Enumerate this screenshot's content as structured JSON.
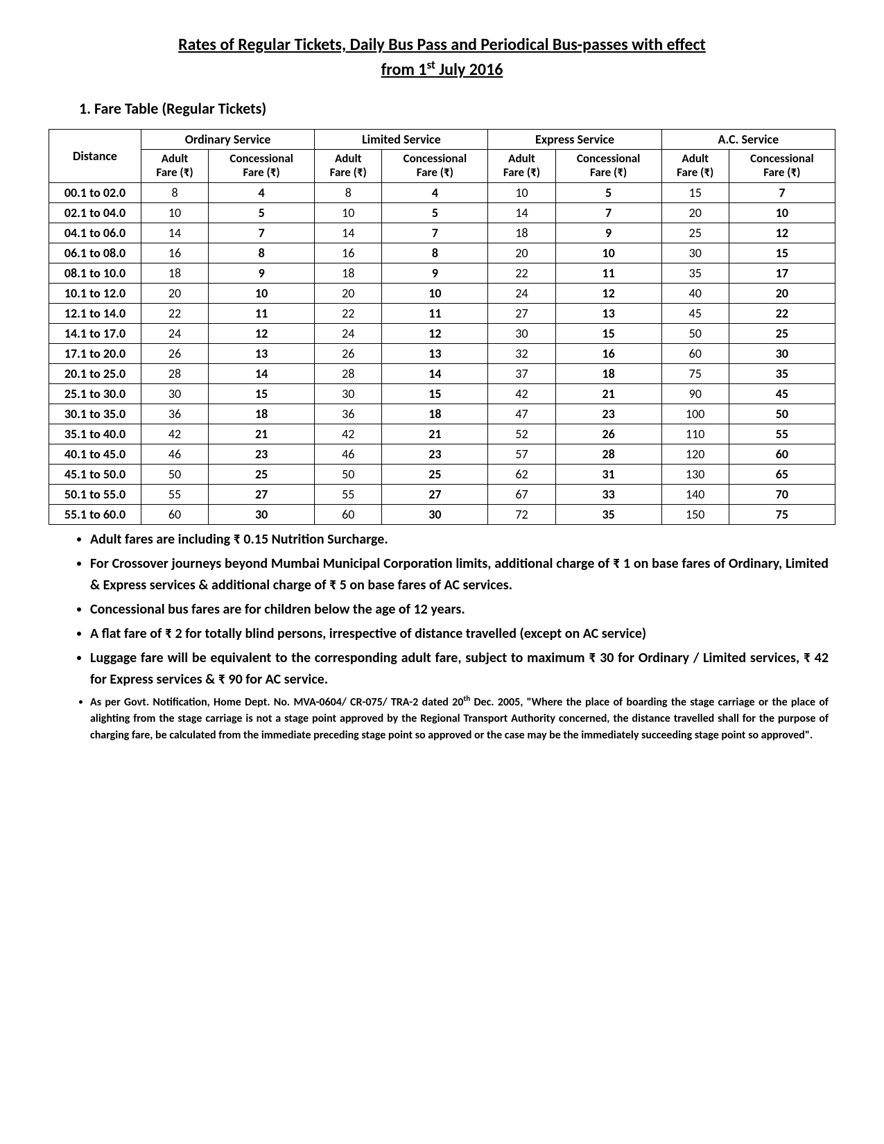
{
  "title_line1": "Rates of Regular Tickets, Daily Bus Pass and Periodical Bus-passes with effect",
  "title_line2_prefix": "from 1",
  "title_line2_sup": "st",
  "title_line2_suffix": " July 2016",
  "section_heading": "1.  Fare Table (Regular Tickets)",
  "table": {
    "header_distance": "Distance",
    "services": [
      "Ordinary Service",
      "Limited Service",
      "Express Service",
      "A.C. Service"
    ],
    "sub_adult_l1": "Adult",
    "sub_adult_l2": "Fare (₹)",
    "sub_conc_l1": "Concessional",
    "sub_conc_l2": "Fare (₹)",
    "rows": [
      {
        "d": "00.1 to 02.0",
        "v": [
          "8",
          "4",
          "8",
          "4",
          "10",
          "5",
          "15",
          "7"
        ]
      },
      {
        "d": "02.1 to 04.0",
        "v": [
          "10",
          "5",
          "10",
          "5",
          "14",
          "7",
          "20",
          "10"
        ]
      },
      {
        "d": "04.1 to 06.0",
        "v": [
          "14",
          "7",
          "14",
          "7",
          "18",
          "9",
          "25",
          "12"
        ]
      },
      {
        "d": "06.1 to 08.0",
        "v": [
          "16",
          "8",
          "16",
          "8",
          "20",
          "10",
          "30",
          "15"
        ]
      },
      {
        "d": "08.1 to 10.0",
        "v": [
          "18",
          "9",
          "18",
          "9",
          "22",
          "11",
          "35",
          "17"
        ]
      },
      {
        "d": "10.1 to 12.0",
        "v": [
          "20",
          "10",
          "20",
          "10",
          "24",
          "12",
          "40",
          "20"
        ]
      },
      {
        "d": "12.1 to 14.0",
        "v": [
          "22",
          "11",
          "22",
          "11",
          "27",
          "13",
          "45",
          "22"
        ]
      },
      {
        "d": "14.1 to 17.0",
        "v": [
          "24",
          "12",
          "24",
          "12",
          "30",
          "15",
          "50",
          "25"
        ]
      },
      {
        "d": "17.1 to 20.0",
        "v": [
          "26",
          "13",
          "26",
          "13",
          "32",
          "16",
          "60",
          "30"
        ]
      },
      {
        "d": "20.1 to 25.0",
        "v": [
          "28",
          "14",
          "28",
          "14",
          "37",
          "18",
          "75",
          "35"
        ]
      },
      {
        "d": "25.1 to 30.0",
        "v": [
          "30",
          "15",
          "30",
          "15",
          "42",
          "21",
          "90",
          "45"
        ]
      },
      {
        "d": "30.1 to 35.0",
        "v": [
          "36",
          "18",
          "36",
          "18",
          "47",
          "23",
          "100",
          "50"
        ]
      },
      {
        "d": "35.1 to 40.0",
        "v": [
          "42",
          "21",
          "42",
          "21",
          "52",
          "26",
          "110",
          "55"
        ]
      },
      {
        "d": "40.1 to 45.0",
        "v": [
          "46",
          "23",
          "46",
          "23",
          "57",
          "28",
          "120",
          "60"
        ]
      },
      {
        "d": "45.1 to 50.0",
        "v": [
          "50",
          "25",
          "50",
          "25",
          "62",
          "31",
          "130",
          "65"
        ]
      },
      {
        "d": "50.1 to 55.0",
        "v": [
          "55",
          "27",
          "55",
          "27",
          "67",
          "33",
          "140",
          "70"
        ]
      },
      {
        "d": "55.1 to 60.0",
        "v": [
          "60",
          "30",
          "60",
          "30",
          "72",
          "35",
          "150",
          "75"
        ]
      }
    ]
  },
  "notes": [
    "Adult fares are including ₹ 0.15 Nutrition Surcharge.",
    "For Crossover journeys beyond Mumbai Municipal Corporation limits, additional charge of ₹ 1 on base fares of Ordinary, Limited & Express services & additional charge of ₹ 5 on base fares of AC services.",
    "Concessional bus fares are for children below the age of 12 years.",
    "A flat fare of ₹ 2 for totally blind persons, irrespective of distance travelled (except on AC service)",
    "Luggage fare will be equivalent to the corresponding adult fare, subject to maximum ₹ 30 for Ordinary / Limited services, ₹ 42 for Express services & ₹ 90 for AC service."
  ],
  "note_small_prefix": "As per Govt. Notification, Home Dept. No. MVA-0604/ CR-075/ TRA-2 dated 20",
  "note_small_sup": "th",
  "note_small_suffix": " Dec. 2005, \"Where the place of boarding the stage carriage or the place of alighting from the stage carriage is not a stage point approved by the Regional Transport Authority concerned, the distance travelled shall for the purpose of charging fare, be calculated from the immediate preceding stage point so approved or the case may be the immediately succeeding stage point so approved\"."
}
